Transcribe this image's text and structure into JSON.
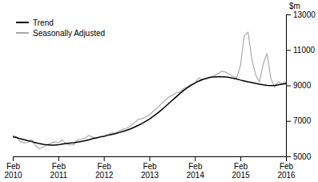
{
  "chart_data": {
    "type": "line",
    "y_label": "$m",
    "categories": [
      "Feb\n2010",
      null,
      null,
      null,
      null,
      null,
      null,
      null,
      null,
      null,
      null,
      null,
      "Feb\n2011",
      null,
      null,
      null,
      null,
      null,
      null,
      null,
      null,
      null,
      null,
      null,
      "Feb\n2012",
      null,
      null,
      null,
      null,
      null,
      null,
      null,
      null,
      null,
      null,
      null,
      "Feb\n2013",
      null,
      null,
      null,
      null,
      null,
      null,
      null,
      null,
      null,
      null,
      null,
      "Feb\n2014",
      null,
      null,
      null,
      null,
      null,
      null,
      null,
      null,
      null,
      null,
      null,
      "Feb\n2015",
      null,
      null,
      null,
      null,
      null,
      null,
      null,
      null,
      null,
      null,
      null,
      "Feb\n2016"
    ],
    "series": [
      {
        "name": "Trend",
        "color": "#000000",
        "values": [
          6100,
          6060,
          5990,
          5940,
          5880,
          5830,
          5770,
          5720,
          5680,
          5650,
          5630,
          5630,
          5650,
          5690,
          5720,
          5750,
          5770,
          5800,
          5840,
          5880,
          5930,
          5990,
          6040,
          6090,
          6130,
          6180,
          6230,
          6280,
          6340,
          6400,
          6470,
          6550,
          6640,
          6740,
          6850,
          6970,
          7100,
          7250,
          7410,
          7580,
          7770,
          7960,
          8150,
          8340,
          8530,
          8710,
          8870,
          9010,
          9130,
          9240,
          9330,
          9400,
          9450,
          9480,
          9490,
          9490,
          9480,
          9450,
          9410,
          9360,
          9300,
          9250,
          9200,
          9160,
          9110,
          9070,
          9030,
          9000,
          8990,
          9000,
          9030,
          9070,
          9100
        ]
      },
      {
        "name": "Seasonally Adjusted",
        "color": "#aaaaaa",
        "values": [
          6200,
          6080,
          5820,
          5760,
          5780,
          5950,
          5600,
          5430,
          5530,
          5650,
          5730,
          5820,
          5770,
          5930,
          5710,
          5660,
          5640,
          5910,
          5960,
          6020,
          6180,
          6090,
          6010,
          6120,
          6110,
          6230,
          6320,
          6310,
          6430,
          6520,
          6580,
          6720,
          6880,
          7080,
          7120,
          7230,
          7340,
          7530,
          7720,
          7930,
          8130,
          8320,
          8440,
          8570,
          8620,
          8820,
          8920,
          9070,
          9120,
          9420,
          9310,
          9370,
          9470,
          9530,
          9650,
          9800,
          9750,
          9640,
          9520,
          9430,
          10100,
          11800,
          12000,
          10500,
          9600,
          9200,
          10200,
          10800,
          9400,
          8900,
          9200,
          9100,
          9200
        ]
      }
    ],
    "ylim": [
      5000,
      13000
    ],
    "yticks": [
      5000,
      7000,
      9000,
      11000,
      13000
    ],
    "grid": false,
    "legend": "upper left"
  }
}
